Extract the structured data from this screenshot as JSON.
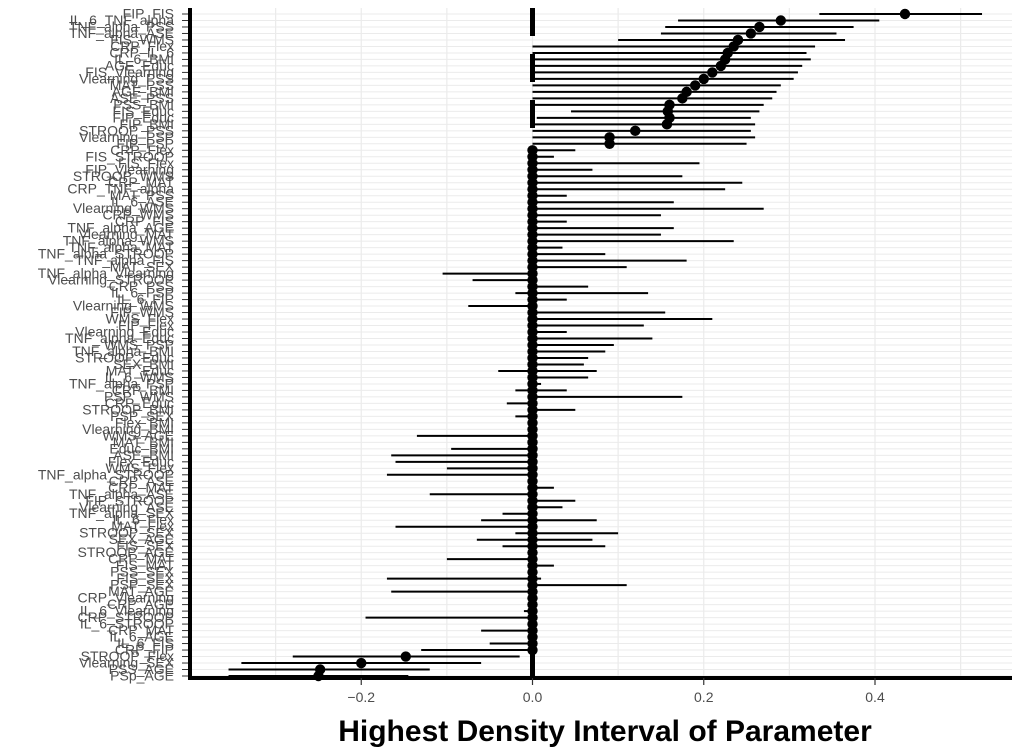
{
  "chart_data": {
    "type": "interval",
    "title": "",
    "xlabel": "Highest Density Interval of Parameter",
    "ylabel": "",
    "xlim": [
      -0.4,
      0.56
    ],
    "x_ticks": [
      -0.2,
      0.0,
      0.2,
      0.4
    ],
    "x_tick_labels": [
      "−0.2",
      "0.0",
      "0.2",
      "0.4"
    ],
    "zero_line": 0.0,
    "grid": true,
    "legend": "none",
    "colors": {
      "mark": "#000000",
      "grid": "#ebebeb",
      "axis": "#000000",
      "label": "#4d4d4d"
    },
    "series": [
      {
        "label": "FIP_FIS",
        "low": 0.335,
        "high": 0.525,
        "point": 0.435
      },
      {
        "label": "IL_6_TNF_alpha",
        "low": 0.17,
        "high": 0.405,
        "point": 0.29
      },
      {
        "label": "TNF_alpha_PSS",
        "low": 0.155,
        "high": 0.375,
        "point": 0.265
      },
      {
        "label": "TNF_alpha_ASE",
        "low": 0.15,
        "high": 0.355,
        "point": 0.255
      },
      {
        "label": "FIS_WMS",
        "low": 0.1,
        "high": 0.365,
        "point": 0.24
      },
      {
        "label": "CRP_Flex",
        "low": 0.0,
        "high": 0.33,
        "point": 0.235
      },
      {
        "label": "CRP_IL_6",
        "low": 0.0,
        "high": 0.32,
        "point": 0.228
      },
      {
        "label": "IL_6_BMI",
        "low": 0.0,
        "high": 0.325,
        "point": 0.225
      },
      {
        "label": "AGE_Educ",
        "low": 0.0,
        "high": 0.315,
        "point": 0.22
      },
      {
        "label": "FIS_Vlearning",
        "low": 0.0,
        "high": 0.31,
        "point": 0.21
      },
      {
        "label": "Vlearning_PSS",
        "low": 0.0,
        "high": 0.305,
        "point": 0.2
      },
      {
        "label": "MAT_PSS",
        "low": 0.0,
        "high": 0.29,
        "point": 0.19
      },
      {
        "label": "AGE_BMI",
        "low": 0.0,
        "high": 0.285,
        "point": 0.18
      },
      {
        "label": "ASE_PSS",
        "low": 0.0,
        "high": 0.28,
        "point": 0.175
      },
      {
        "label": "PSS_BMI",
        "low": 0.0,
        "high": 0.27,
        "point": 0.16
      },
      {
        "label": "FIS_Educ",
        "low": 0.045,
        "high": 0.265,
        "point": 0.158
      },
      {
        "label": "FIP_Educ",
        "low": 0.005,
        "high": 0.255,
        "point": 0.16
      },
      {
        "label": "FIP_BMI",
        "low": 0.0,
        "high": 0.26,
        "point": 0.157
      },
      {
        "label": "STROOP_PSS",
        "low": 0.0,
        "high": 0.255,
        "point": 0.12
      },
      {
        "label": "Vlearning_PSP",
        "low": 0.0,
        "high": 0.26,
        "point": 0.09
      },
      {
        "label": "FIP_PSP",
        "low": 0.0,
        "high": 0.25,
        "point": 0.09
      },
      {
        "label": "CRP_Flex",
        "low": 0.0,
        "high": 0.05,
        "point": 0.0
      },
      {
        "label": "FIS_STROOP",
        "low": 0.0,
        "high": 0.025,
        "point": 0.0
      },
      {
        "label": "FIS_Flex",
        "low": 0.0,
        "high": 0.195,
        "point": 0.0
      },
      {
        "label": "FIP_Vlearning",
        "low": 0.0,
        "high": 0.07,
        "point": 0.0
      },
      {
        "label": "STROOP_WMS",
        "low": 0.0,
        "high": 0.175,
        "point": 0.0
      },
      {
        "label": "CRP_MAT",
        "low": 0.0,
        "high": 0.245,
        "point": 0.0
      },
      {
        "label": "CRP_TNF_alpha",
        "low": 0.0,
        "high": 0.225,
        "point": 0.0
      },
      {
        "label": "MAT_PSS",
        "low": 0.0,
        "high": 0.04,
        "point": 0.0
      },
      {
        "label": "IL_6_ASE",
        "low": 0.0,
        "high": 0.165,
        "point": 0.0
      },
      {
        "label": "Vlearning_WMS",
        "low": 0.0,
        "high": 0.27,
        "point": 0.0
      },
      {
        "label": "CRP_WMS",
        "low": 0.0,
        "high": 0.15,
        "point": 0.0
      },
      {
        "label": "CRP_FIS",
        "low": 0.0,
        "high": 0.04,
        "point": 0.0
      },
      {
        "label": "TNF_alpha_AGE",
        "low": 0.0,
        "high": 0.165,
        "point": 0.0
      },
      {
        "label": "Vlearning_MAT",
        "low": 0.0,
        "high": 0.15,
        "point": 0.0
      },
      {
        "label": "TNF_alpha_WMS",
        "low": 0.0,
        "high": 0.235,
        "point": 0.0
      },
      {
        "label": "TNF_alpha_MAT",
        "low": 0.0,
        "high": 0.035,
        "point": 0.0
      },
      {
        "label": "TNF_alpha_STROOP",
        "low": 0.0,
        "high": 0.085,
        "point": 0.0
      },
      {
        "label": "TNF_alpha_FIS",
        "low": 0.0,
        "high": 0.18,
        "point": 0.0
      },
      {
        "label": "MAT_SEX",
        "low": 0.0,
        "high": 0.11,
        "point": 0.0
      },
      {
        "label": "TNF_alpha_Vlearning",
        "low": -0.105,
        "high": 0.0,
        "point": 0.0
      },
      {
        "label": "Vlearning_STROOP",
        "low": -0.07,
        "high": 0.0,
        "point": 0.0
      },
      {
        "label": "CRP_PSS",
        "low": 0.0,
        "high": 0.065,
        "point": 0.0
      },
      {
        "label": "IL_6_PSP",
        "low": -0.02,
        "high": 0.135,
        "point": 0.0
      },
      {
        "label": "IL_6_FIP",
        "low": 0.0,
        "high": 0.04,
        "point": 0.0
      },
      {
        "label": "Vlearning_WMS",
        "low": -0.075,
        "high": 0.0,
        "point": 0.0
      },
      {
        "label": "FIP_WMS",
        "low": 0.0,
        "high": 0.155,
        "point": 0.0
      },
      {
        "label": "WMS_Flex",
        "low": 0.0,
        "high": 0.21,
        "point": 0.0
      },
      {
        "label": "FIP_Flex",
        "low": 0.0,
        "high": 0.13,
        "point": 0.0
      },
      {
        "label": "Vlearning_Educ",
        "low": 0.0,
        "high": 0.04,
        "point": 0.0
      },
      {
        "label": "TNF_alpha_Educ",
        "low": 0.0,
        "high": 0.14,
        "point": 0.0
      },
      {
        "label": "WMS_PSP",
        "low": 0.0,
        "high": 0.095,
        "point": 0.0
      },
      {
        "label": "TNF_alpha_BMI",
        "low": 0.0,
        "high": 0.085,
        "point": 0.0
      },
      {
        "label": "STROOP_Educ",
        "low": 0.0,
        "high": 0.065,
        "point": 0.0
      },
      {
        "label": "SEX_BMI",
        "low": 0.0,
        "high": 0.06,
        "point": 0.0
      },
      {
        "label": "MAT_Educ",
        "low": -0.04,
        "high": 0.075,
        "point": 0.0
      },
      {
        "label": "IL_6_WMS",
        "low": 0.0,
        "high": 0.065,
        "point": 0.0
      },
      {
        "label": "TNF_alpha_PSP",
        "low": 0.0,
        "high": 0.01,
        "point": 0.0
      },
      {
        "label": "CRP_BMI",
        "low": -0.02,
        "high": 0.04,
        "point": 0.0
      },
      {
        "label": "PSP_WMS",
        "low": 0.0,
        "high": 0.175,
        "point": 0.0
      },
      {
        "label": "CRP_Educ",
        "low": -0.03,
        "high": 0.0,
        "point": 0.0
      },
      {
        "label": "STROOP_BMI",
        "low": 0.0,
        "high": 0.05,
        "point": 0.0
      },
      {
        "label": "PSP_SEX",
        "low": -0.02,
        "high": 0.0,
        "point": 0.0
      },
      {
        "label": "Flex_BMI",
        "low": 0.0,
        "high": 0.0,
        "point": 0.0
      },
      {
        "label": "Vlearning_BMI",
        "low": 0.0,
        "high": 0.0,
        "point": 0.0
      },
      {
        "label": "WMS_AGE",
        "low": -0.135,
        "high": 0.0,
        "point": 0.0
      },
      {
        "label": "MAT_BMI",
        "low": 0.0,
        "high": 0.0,
        "point": 0.0
      },
      {
        "label": "Educ_BMI",
        "low": -0.095,
        "high": 0.005,
        "point": 0.0
      },
      {
        "label": "ASE_BMI",
        "low": -0.165,
        "high": 0.0,
        "point": 0.0
      },
      {
        "label": "Flex_Educ",
        "low": -0.16,
        "high": 0.0,
        "point": 0.0
      },
      {
        "label": "WMS_Flex",
        "low": -0.1,
        "high": 0.0,
        "point": 0.0
      },
      {
        "label": "TNF_alpha_STROOP",
        "low": -0.17,
        "high": 0.0,
        "point": 0.0
      },
      {
        "label": "CRP_ASE",
        "low": 0.0,
        "high": 0.0,
        "point": 0.0
      },
      {
        "label": "CRP_MAT",
        "low": 0.0,
        "high": 0.025,
        "point": 0.0
      },
      {
        "label": "TNF_alpha_ASE",
        "low": -0.12,
        "high": 0.0,
        "point": 0.0
      },
      {
        "label": "FIP_STROOP",
        "low": 0.0,
        "high": 0.05,
        "point": 0.0
      },
      {
        "label": "Vlearning_ASE",
        "low": 0.0,
        "high": 0.035,
        "point": 0.0
      },
      {
        "label": "TNF_alpha_SEX",
        "low": -0.035,
        "high": 0.0,
        "point": 0.0
      },
      {
        "label": "IL_6_Flex",
        "low": -0.06,
        "high": 0.075,
        "point": 0.0
      },
      {
        "label": "MAT_Flex",
        "low": -0.16,
        "high": 0.0,
        "point": 0.0
      },
      {
        "label": "STROOP_SEX",
        "low": -0.02,
        "high": 0.1,
        "point": 0.0
      },
      {
        "label": "SEX_AGE",
        "low": -0.065,
        "high": 0.07,
        "point": 0.0
      },
      {
        "label": "FIS_SEX",
        "low": -0.035,
        "high": 0.085,
        "point": 0.0
      },
      {
        "label": "STROOP_AGE",
        "low": 0.0,
        "high": 0.0,
        "point": 0.0
      },
      {
        "label": "CRP_MAT",
        "low": -0.1,
        "high": 0.0,
        "point": 0.0
      },
      {
        "label": "FIS_MAT",
        "low": 0.0,
        "high": 0.025,
        "point": 0.0
      },
      {
        "label": "PSS_SEX",
        "low": 0.0,
        "high": 0.005,
        "point": 0.0
      },
      {
        "label": "FIS_SEX",
        "low": -0.17,
        "high": 0.01,
        "point": 0.0
      },
      {
        "label": "PSP_SEX",
        "low": 0.0,
        "high": 0.11,
        "point": 0.0
      },
      {
        "label": "MAT_AGE",
        "low": -0.165,
        "high": 0.0,
        "point": 0.0
      },
      {
        "label": "CRP_Vlearning",
        "low": 0.0,
        "high": 0.0,
        "point": 0.0
      },
      {
        "label": "CRP_AGE",
        "low": 0.0,
        "high": 0.0,
        "point": 0.0
      },
      {
        "label": "IL_6_Vlearning",
        "low": -0.01,
        "high": 0.0,
        "point": 0.0
      },
      {
        "label": "CRP_STROOP",
        "low": -0.195,
        "high": 0.0,
        "point": 0.0
      },
      {
        "label": "IL_6_STROOP",
        "low": 0.0,
        "high": 0.0,
        "point": 0.0
      },
      {
        "label": "CRP_MAT",
        "low": -0.06,
        "high": 0.0,
        "point": 0.0
      },
      {
        "label": "IL_6_AGE",
        "low": 0.0,
        "high": 0.0,
        "point": 0.0
      },
      {
        "label": "IL_6_FIS",
        "low": -0.05,
        "high": 0.0,
        "point": 0.0
      },
      {
        "label": "CRP_FIP",
        "low": -0.13,
        "high": 0.0,
        "point": 0.0
      },
      {
        "label": "STROOP_Flex",
        "low": -0.28,
        "high": -0.015,
        "point": -0.148
      },
      {
        "label": "Vlearning_SEX",
        "low": -0.34,
        "high": -0.06,
        "point": -0.2
      },
      {
        "label": "PSS_AGE",
        "low": -0.355,
        "high": -0.12,
        "point": -0.248
      },
      {
        "label": "PSp_AGE",
        "low": -0.355,
        "high": -0.145,
        "point": -0.25
      }
    ]
  }
}
